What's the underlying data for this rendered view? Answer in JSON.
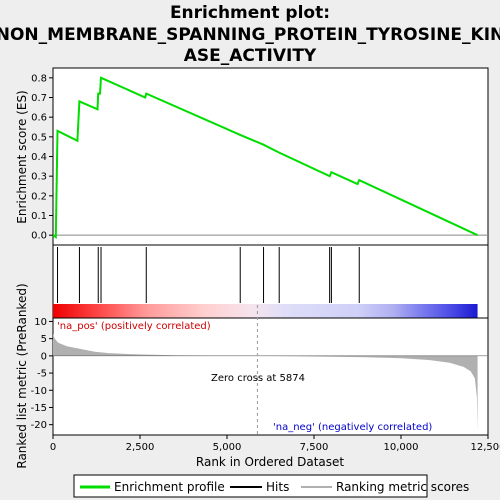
{
  "title_line1": "Enrichment plot:",
  "title_line2": "NON_MEMBRANE_SPANNING_PROTEIN_TYROSINE_KIN",
  "title_line3": "ASE_ACTIVITY",
  "colors": {
    "enrichment": "#00dd00",
    "hits": "#000000",
    "metric_fill": "#b0b0b0",
    "pos_label": "#cc0000",
    "neg_label": "#0000cc"
  },
  "chart_data": [
    {
      "type": "line",
      "name": "enrichment-profile",
      "ylabel": "Enrichment score (ES)",
      "xlim": [
        0,
        12500
      ],
      "ylim": [
        -0.05,
        0.85
      ],
      "yticks": [
        "0.0",
        "0.1",
        "0.2",
        "0.3",
        "0.4",
        "0.5",
        "0.6",
        "0.7",
        "0.8"
      ],
      "ytick_values": [
        0.0,
        0.1,
        0.2,
        0.3,
        0.4,
        0.5,
        0.6,
        0.7,
        0.8
      ],
      "points": [
        [
          0,
          0
        ],
        [
          80,
          -0.01
        ],
        [
          130,
          0.53
        ],
        [
          700,
          0.48
        ],
        [
          760,
          0.68
        ],
        [
          1280,
          0.64
        ],
        [
          1300,
          0.72
        ],
        [
          1350,
          0.72
        ],
        [
          1380,
          0.8
        ],
        [
          2650,
          0.7
        ],
        [
          2680,
          0.72
        ],
        [
          5380,
          0.51
        ],
        [
          6050,
          0.46
        ],
        [
          6500,
          0.42
        ],
        [
          7950,
          0.3
        ],
        [
          8000,
          0.32
        ],
        [
          8750,
          0.26
        ],
        [
          8800,
          0.28
        ],
        [
          12200,
          0.0
        ]
      ]
    },
    {
      "type": "scatter",
      "name": "hits",
      "x": [
        130,
        760,
        1300,
        1380,
        2680,
        5380,
        6050,
        6500,
        7950,
        8000,
        8800
      ]
    },
    {
      "type": "area",
      "name": "ranked-list-metric",
      "xlabel": "Rank in Ordered Dataset",
      "ylabel": "Ranked list metric (PreRanked)",
      "xlim": [
        0,
        12500
      ],
      "ylim": [
        -23,
        11
      ],
      "xticks": [
        "0",
        "2,500",
        "5,000",
        "7,500",
        "10,000",
        "12,500"
      ],
      "xtick_values": [
        0,
        2500,
        5000,
        7500,
        10000,
        12500
      ],
      "yticks": [
        "10",
        "5",
        "0",
        "-5",
        "-10",
        "-15",
        "-20"
      ],
      "ytick_values": [
        10,
        5,
        0,
        -5,
        -10,
        -15,
        -20
      ],
      "points": [
        [
          0,
          6.5
        ],
        [
          50,
          5.0
        ],
        [
          150,
          3.8
        ],
        [
          400,
          2.8
        ],
        [
          800,
          2.0
        ],
        [
          1200,
          1.2
        ],
        [
          1600,
          0.8
        ],
        [
          2000,
          0.6
        ],
        [
          2600,
          0.4
        ],
        [
          3500,
          0.2
        ],
        [
          4500,
          0.1
        ],
        [
          5874,
          0
        ],
        [
          7000,
          -0.1
        ],
        [
          8000,
          -0.25
        ],
        [
          9000,
          -0.4
        ],
        [
          10000,
          -0.7
        ],
        [
          10800,
          -1.2
        ],
        [
          11400,
          -2.0
        ],
        [
          11800,
          -3.2
        ],
        [
          12000,
          -4.5
        ],
        [
          12120,
          -6.5
        ],
        [
          12180,
          -12
        ],
        [
          12200,
          -22
        ]
      ],
      "zero_cross_x": 5874,
      "annotations": {
        "pos": "'na_pos' (positively correlated)",
        "neg": "'na_neg' (negatively correlated)",
        "zero_cross": "Zero cross at 5874"
      }
    }
  ],
  "legend": {
    "items": [
      {
        "label": "Enrichment profile",
        "color": "#00dd00"
      },
      {
        "label": "Hits",
        "color": "#000000"
      },
      {
        "label": "Ranking metric scores",
        "color": "#b0b0b0"
      }
    ]
  }
}
